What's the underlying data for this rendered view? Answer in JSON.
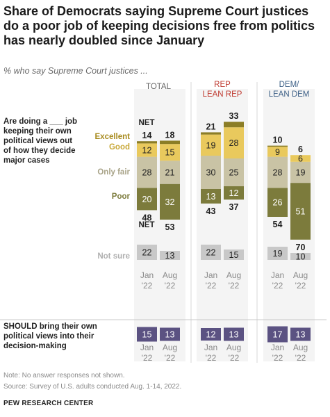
{
  "title": "Share of Democrats saying Supreme Court justices do a poor job of keeping decisions free from politics has nearly doubled since January",
  "subtitle": "% who say Supreme Court justices ...",
  "note": "Note: No answer responses not shown.",
  "source": "Source: Survey of U.S. adults conducted Aug. 1-14, 2022.",
  "organization": "PEW RESEARCH CENTER",
  "colors": {
    "excellent": "#8b7d26",
    "good": "#e9c95d",
    "only_fair": "#c9c3a5",
    "poor": "#7c7b3c",
    "not_sure": "#c8c8c8",
    "should": "#5b5282",
    "label_excellent": "#a78a1d",
    "label_good": "#c9a93a",
    "label_fair": "#a9a489",
    "label_poor": "#7c7b3c",
    "label_not_sure": "#b0b0b0",
    "rep": "#bf3a30",
    "dem": "#3c5f86",
    "total": "#666666"
  },
  "chart_data": {
    "type": "bar",
    "stacked": true,
    "groups": [
      "TOTAL",
      "REP LEAN REP",
      "DEM/ LEAN DEM"
    ],
    "periods": [
      "Jan '22",
      "Aug '22"
    ],
    "question_1": "Are doing a ___ job keeping their own political views out of how they decide major cases",
    "question_2": "SHOULD bring their own political views into their decision-making",
    "category_labels": {
      "excellent": "Excellent",
      "good": "Good",
      "only_fair": "Only fair",
      "poor": "Poor",
      "not_sure": "Not sure",
      "net": "NET"
    },
    "series": [
      {
        "name": "Excellent",
        "values": [
          [
            2,
            3
          ],
          [
            2,
            5
          ],
          [
            1,
            0
          ]
        ]
      },
      {
        "name": "Good",
        "values": [
          [
            12,
            15
          ],
          [
            19,
            28
          ],
          [
            9,
            6
          ]
        ]
      },
      {
        "name": "Only fair",
        "values": [
          [
            28,
            21
          ],
          [
            30,
            25
          ],
          [
            28,
            19
          ]
        ]
      },
      {
        "name": "Poor",
        "values": [
          [
            20,
            32
          ],
          [
            13,
            12
          ],
          [
            26,
            51
          ]
        ]
      },
      {
        "name": "Not sure",
        "values": [
          [
            22,
            13
          ],
          [
            22,
            15
          ],
          [
            19,
            10
          ]
        ]
      },
      {
        "name": "SHOULD bring their own political views into their decision-making",
        "values": [
          [
            15,
            13
          ],
          [
            12,
            13
          ],
          [
            17,
            13
          ]
        ]
      }
    ],
    "net_positive": [
      [
        14,
        18
      ],
      [
        21,
        33
      ],
      [
        10,
        6
      ]
    ],
    "net_negative": [
      [
        48,
        53
      ],
      [
        43,
        37
      ],
      [
        54,
        70
      ]
    ]
  }
}
